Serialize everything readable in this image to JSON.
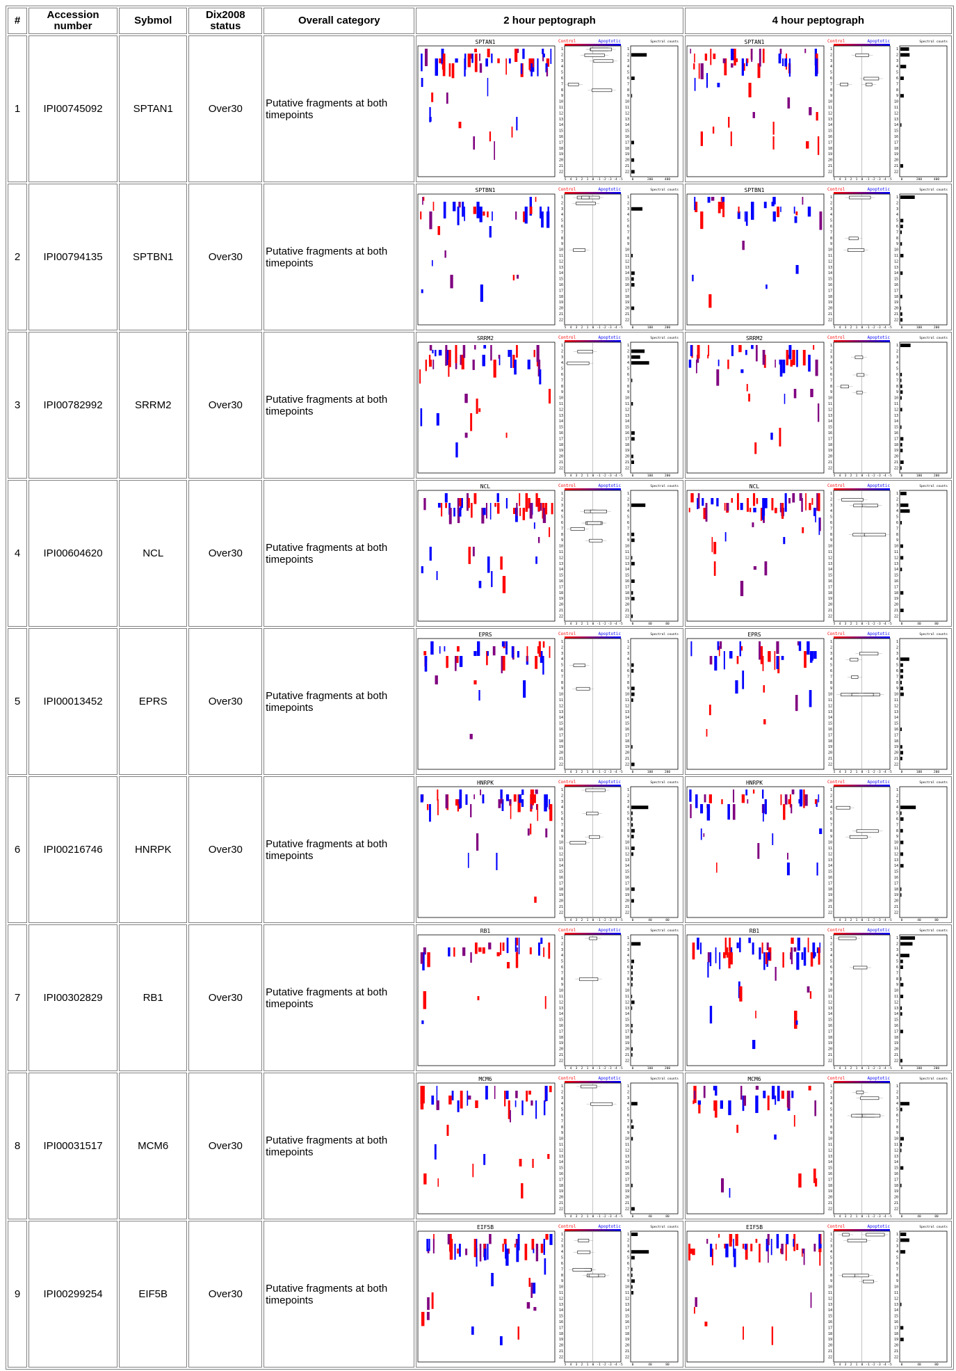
{
  "headers": {
    "num": "#",
    "accession": "Accession number",
    "symbol": "Sybmol",
    "dix": "Dix2008 status",
    "category": "Overall category",
    "pep2": "2 hour peptograph",
    "pep4": "4 hour peptograph"
  },
  "peptograph_labels": {
    "control": "Control",
    "apoptotic": "Apoptotic",
    "spectral": "Spectral counts",
    "fold_ticks": [
      "5",
      "4",
      "3",
      "2",
      "1",
      "0",
      "-1",
      "-2",
      "-3",
      "-4",
      "-5"
    ],
    "row_numbers": [
      "1",
      "2",
      "3",
      "4",
      "5",
      "6",
      "7",
      "8",
      "9",
      "10",
      "11",
      "12",
      "13",
      "14",
      "15",
      "16",
      "17",
      "18",
      "19",
      "20",
      "21",
      "22"
    ]
  },
  "rows": [
    {
      "num": "1",
      "accession": "IPI00745092",
      "symbol": "SPTAN1",
      "dix": "Over30",
      "category": "Putative fragments at both timepoints",
      "count_ticks": [
        "0",
        "200",
        "400"
      ]
    },
    {
      "num": "2",
      "accession": "IPI00794135",
      "symbol": "SPTBN1",
      "dix": "Over30",
      "category": "Putative fragments at both timepoints",
      "count_ticks": [
        "0",
        "100",
        "200"
      ]
    },
    {
      "num": "3",
      "accession": "IPI00782992",
      "symbol": "SRRM2",
      "dix": "Over30",
      "category": "Putative fragments at both timepoints",
      "count_ticks": [
        "0",
        "100",
        "200"
      ]
    },
    {
      "num": "4",
      "accession": "IPI00604620",
      "symbol": "NCL",
      "dix": "Over30",
      "category": "Putative fragments at both timepoints",
      "count_ticks": [
        "0",
        "40",
        "80"
      ]
    },
    {
      "num": "5",
      "accession": "IPI00013452",
      "symbol": "EPRS",
      "dix": "Over30",
      "category": "Putative fragments at both timepoints",
      "count_ticks": [
        "0",
        "100",
        "200"
      ]
    },
    {
      "num": "6",
      "accession": "IPI00216746",
      "symbol": "HNRPK",
      "dix": "Over30",
      "category": "Putative fragments at both timepoints",
      "count_ticks": [
        "0",
        "40",
        "80"
      ]
    },
    {
      "num": "7",
      "accession": "IPI00302829",
      "symbol": "RB1",
      "dix": "Over30",
      "category": "Putative fragments at both timepoints",
      "count_ticks": [
        "0",
        "100",
        "200"
      ]
    },
    {
      "num": "8",
      "accession": "IPI00031517",
      "symbol": "MCM6",
      "dix": "Over30",
      "category": "Putative fragments at both timepoints",
      "count_ticks": [
        "0",
        "40",
        "80"
      ]
    },
    {
      "num": "9",
      "accession": "IPI00299254",
      "symbol": "EIF5B",
      "dix": "Over30",
      "category": "Putative fragments at both timepoints",
      "count_ticks": [
        "0",
        "40",
        "80"
      ]
    }
  ],
  "colors": {
    "control": "#ff0000",
    "apoptotic": "#0000ff",
    "mixed": "#800080",
    "border": "#808080"
  }
}
